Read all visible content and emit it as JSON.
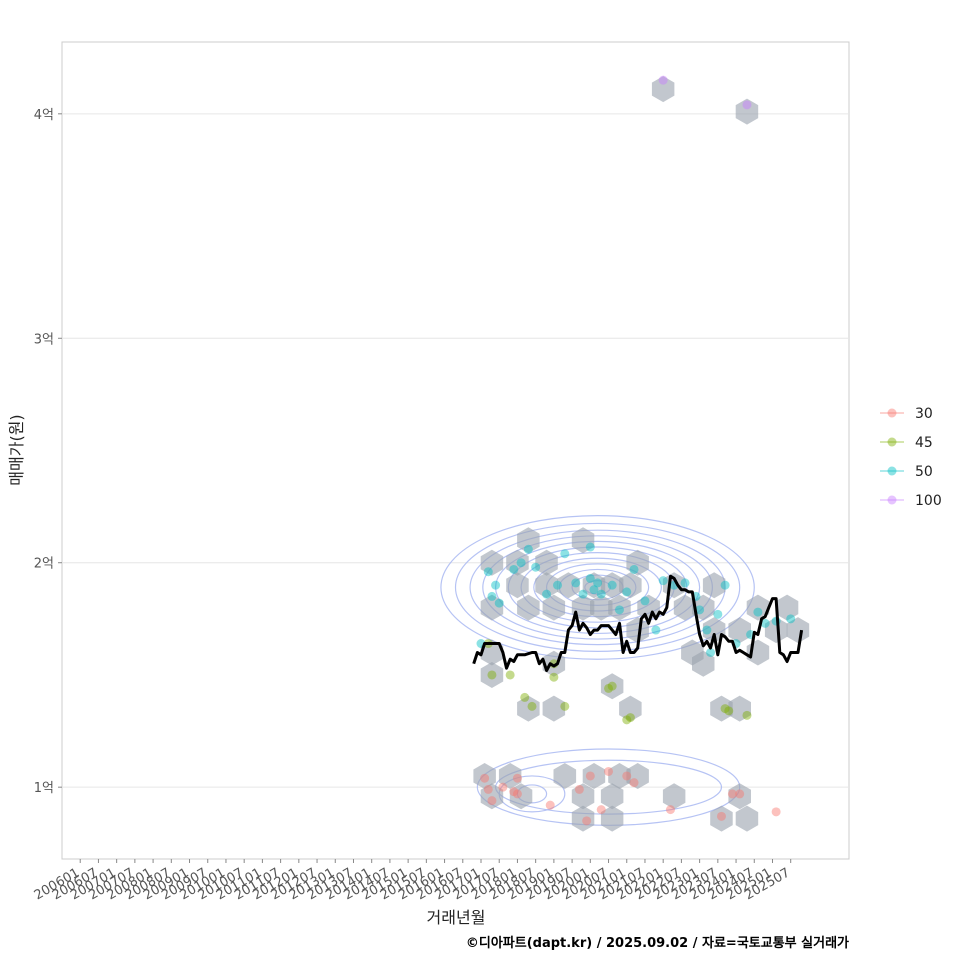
{
  "chart_data": {
    "type": "scatter",
    "title": "",
    "xlabel": "거래년월",
    "ylabel": "매매가(원)",
    "caption": "©디아파트(dapt.kr) / 2025.09.02 / 자료=국토교통부 실거래가",
    "x_ticks": [
      "200601",
      "200607",
      "200701",
      "200707",
      "200801",
      "200807",
      "200901",
      "200907",
      "201001",
      "201007",
      "201101",
      "201107",
      "201201",
      "201207",
      "201301",
      "201307",
      "201401",
      "201407",
      "201501",
      "201507",
      "201601",
      "201607",
      "201701",
      "201707",
      "201801",
      "201807",
      "201901",
      "201907",
      "202001",
      "202007",
      "202101",
      "202107",
      "202201",
      "202207",
      "202301",
      "202307",
      "202401",
      "202407",
      "202501",
      "202507"
    ],
    "y_ticks": [
      {
        "value": 1,
        "label": "1억"
      },
      {
        "value": 2,
        "label": "2억"
      },
      {
        "value": 3,
        "label": "3억"
      },
      {
        "value": 4,
        "label": "4억"
      }
    ],
    "xlim": [
      2005.5,
      2027.1
    ],
    "ylim": [
      0.68,
      4.32
    ],
    "legend": {
      "position": "right",
      "entries": [
        {
          "label": "30",
          "color": "#f8766d"
        },
        {
          "label": "45",
          "color": "#7cae00"
        },
        {
          "label": "50",
          "color": "#00bfc4"
        },
        {
          "label": "100",
          "color": "#c77cff"
        }
      ]
    },
    "series": [
      {
        "name": "30",
        "color": "#f8766d",
        "points": [
          [
            2017.1,
            1.04
          ],
          [
            2017.2,
            0.99
          ],
          [
            2017.3,
            0.94
          ],
          [
            2017.6,
            1.0
          ],
          [
            2017.9,
            0.98
          ],
          [
            2018.0,
            1.04
          ],
          [
            2018.0,
            0.97
          ],
          [
            2018.9,
            0.92
          ],
          [
            2019.7,
            0.99
          ],
          [
            2019.9,
            0.85
          ],
          [
            2020.0,
            1.05
          ],
          [
            2020.3,
            0.9
          ],
          [
            2020.5,
            1.07
          ],
          [
            2021.0,
            1.05
          ],
          [
            2021.2,
            1.02
          ],
          [
            2022.2,
            0.9
          ],
          [
            2023.6,
            0.87
          ],
          [
            2023.9,
            0.97
          ],
          [
            2024.1,
            0.97
          ],
          [
            2025.1,
            0.89
          ]
        ]
      },
      {
        "name": "45",
        "color": "#7cae00",
        "points": [
          [
            2017.2,
            1.64
          ],
          [
            2017.3,
            1.5
          ],
          [
            2017.8,
            1.5
          ],
          [
            2018.2,
            1.4
          ],
          [
            2018.4,
            1.36
          ],
          [
            2019.0,
            1.49
          ],
          [
            2019.0,
            1.55
          ],
          [
            2019.3,
            1.36
          ],
          [
            2020.5,
            1.44
          ],
          [
            2020.6,
            1.45
          ],
          [
            2021.0,
            1.3
          ],
          [
            2021.1,
            1.31
          ],
          [
            2023.7,
            1.35
          ],
          [
            2023.8,
            1.34
          ],
          [
            2024.3,
            1.32
          ]
        ]
      },
      {
        "name": "50",
        "color": "#00bfc4",
        "points": [
          [
            2017.2,
            1.96
          ],
          [
            2017.3,
            1.85
          ],
          [
            2017.4,
            1.9
          ],
          [
            2017.5,
            1.82
          ],
          [
            2017.9,
            1.97
          ],
          [
            2018.1,
            2.0
          ],
          [
            2018.3,
            2.06
          ],
          [
            2018.5,
            1.98
          ],
          [
            2018.8,
            1.86
          ],
          [
            2019.1,
            1.9
          ],
          [
            2019.3,
            2.04
          ],
          [
            2019.6,
            1.91
          ],
          [
            2019.8,
            1.86
          ],
          [
            2020.0,
            1.93
          ],
          [
            2020.1,
            1.88
          ],
          [
            2020.2,
            1.91
          ],
          [
            2020.3,
            1.86
          ],
          [
            2020.6,
            1.9
          ],
          [
            2020.8,
            1.79
          ],
          [
            2021.0,
            1.87
          ],
          [
            2021.2,
            1.97
          ],
          [
            2021.5,
            1.83
          ],
          [
            2021.8,
            1.7
          ],
          [
            2022.0,
            1.92
          ],
          [
            2022.3,
            1.9
          ],
          [
            2022.6,
            1.91
          ],
          [
            2022.9,
            1.85
          ],
          [
            2023.0,
            1.79
          ],
          [
            2023.2,
            1.7
          ],
          [
            2023.3,
            1.6
          ],
          [
            2023.5,
            1.77
          ],
          [
            2023.7,
            1.9
          ],
          [
            2024.0,
            1.64
          ],
          [
            2024.4,
            1.68
          ],
          [
            2024.6,
            1.78
          ],
          [
            2024.8,
            1.73
          ],
          [
            2025.1,
            1.74
          ],
          [
            2025.5,
            1.75
          ],
          [
            2017.0,
            1.64
          ],
          [
            2020.0,
            2.07
          ]
        ]
      },
      {
        "name": "100",
        "color": "#c77cff",
        "points": [
          [
            2022.0,
            4.15
          ],
          [
            2024.3,
            4.04
          ]
        ]
      }
    ],
    "hexbins": [
      [
        2022.0,
        4.11
      ],
      [
        2024.3,
        4.01
      ],
      [
        2017.3,
        2.0
      ],
      [
        2018.3,
        2.1
      ],
      [
        2019.8,
        2.1
      ],
      [
        2018.0,
        2.0
      ],
      [
        2018.8,
        2.0
      ],
      [
        2021.3,
        2.0
      ],
      [
        2017.3,
        1.8
      ],
      [
        2018.0,
        1.9
      ],
      [
        2018.8,
        1.9
      ],
      [
        2019.4,
        1.9
      ],
      [
        2020.1,
        1.9
      ],
      [
        2020.6,
        1.9
      ],
      [
        2021.1,
        1.9
      ],
      [
        2022.3,
        1.9
      ],
      [
        2023.4,
        1.9
      ],
      [
        2018.3,
        1.8
      ],
      [
        2019.0,
        1.8
      ],
      [
        2019.8,
        1.8
      ],
      [
        2020.3,
        1.8
      ],
      [
        2020.8,
        1.8
      ],
      [
        2021.6,
        1.8
      ],
      [
        2022.6,
        1.8
      ],
      [
        2023.1,
        1.8
      ],
      [
        2024.6,
        1.8
      ],
      [
        2025.4,
        1.8
      ],
      [
        2021.3,
        1.7
      ],
      [
        2023.4,
        1.7
      ],
      [
        2024.1,
        1.7
      ],
      [
        2025.1,
        1.7
      ],
      [
        2025.7,
        1.7
      ],
      [
        2017.3,
        1.6
      ],
      [
        2022.8,
        1.6
      ],
      [
        2024.6,
        1.6
      ],
      [
        2017.3,
        1.5
      ],
      [
        2019.0,
        1.55
      ],
      [
        2023.1,
        1.55
      ],
      [
        2020.6,
        1.45
      ],
      [
        2018.3,
        1.35
      ],
      [
        2019.0,
        1.35
      ],
      [
        2021.1,
        1.35
      ],
      [
        2023.6,
        1.35
      ],
      [
        2024.1,
        1.35
      ],
      [
        2017.1,
        1.05
      ],
      [
        2017.8,
        1.05
      ],
      [
        2019.3,
        1.05
      ],
      [
        2020.1,
        1.05
      ],
      [
        2020.8,
        1.05
      ],
      [
        2021.3,
        1.05
      ],
      [
        2017.3,
        0.96
      ],
      [
        2018.1,
        0.96
      ],
      [
        2019.8,
        0.96
      ],
      [
        2020.6,
        0.96
      ],
      [
        2022.3,
        0.96
      ],
      [
        2024.1,
        0.96
      ],
      [
        2019.8,
        0.86
      ],
      [
        2020.6,
        0.86
      ],
      [
        2023.6,
        0.86
      ],
      [
        2024.3,
        0.86
      ]
    ],
    "trend_line": [
      [
        2016.8,
        1.55
      ],
      [
        2016.9,
        1.6
      ],
      [
        2017.0,
        1.59
      ],
      [
        2017.1,
        1.64
      ],
      [
        2017.3,
        1.64
      ],
      [
        2017.5,
        1.64
      ],
      [
        2017.6,
        1.6
      ],
      [
        2017.7,
        1.53
      ],
      [
        2017.8,
        1.57
      ],
      [
        2017.9,
        1.56
      ],
      [
        2018.0,
        1.59
      ],
      [
        2018.2,
        1.59
      ],
      [
        2018.4,
        1.6
      ],
      [
        2018.5,
        1.6
      ],
      [
        2018.6,
        1.55
      ],
      [
        2018.7,
        1.57
      ],
      [
        2018.8,
        1.52
      ],
      [
        2018.9,
        1.55
      ],
      [
        2019.0,
        1.54
      ],
      [
        2019.1,
        1.55
      ],
      [
        2019.2,
        1.6
      ],
      [
        2019.3,
        1.6
      ],
      [
        2019.4,
        1.7
      ],
      [
        2019.5,
        1.72
      ],
      [
        2019.6,
        1.78
      ],
      [
        2019.7,
        1.7
      ],
      [
        2019.8,
        1.73
      ],
      [
        2019.9,
        1.71
      ],
      [
        2020.0,
        1.68
      ],
      [
        2020.1,
        1.7
      ],
      [
        2020.2,
        1.7
      ],
      [
        2020.3,
        1.72
      ],
      [
        2020.4,
        1.72
      ],
      [
        2020.5,
        1.72
      ],
      [
        2020.6,
        1.7
      ],
      [
        2020.7,
        1.68
      ],
      [
        2020.8,
        1.73
      ],
      [
        2020.9,
        1.6
      ],
      [
        2021.0,
        1.65
      ],
      [
        2021.1,
        1.6
      ],
      [
        2021.2,
        1.6
      ],
      [
        2021.3,
        1.62
      ],
      [
        2021.4,
        1.75
      ],
      [
        2021.5,
        1.77
      ],
      [
        2021.6,
        1.73
      ],
      [
        2021.7,
        1.78
      ],
      [
        2021.8,
        1.75
      ],
      [
        2021.9,
        1.78
      ],
      [
        2022.0,
        1.77
      ],
      [
        2022.1,
        1.8
      ],
      [
        2022.2,
        1.94
      ],
      [
        2022.3,
        1.93
      ],
      [
        2022.4,
        1.9
      ],
      [
        2022.5,
        1.88
      ],
      [
        2022.6,
        1.88
      ],
      [
        2022.7,
        1.87
      ],
      [
        2022.8,
        1.87
      ],
      [
        2022.9,
        1.77
      ],
      [
        2023.0,
        1.68
      ],
      [
        2023.1,
        1.63
      ],
      [
        2023.2,
        1.65
      ],
      [
        2023.3,
        1.62
      ],
      [
        2023.4,
        1.68
      ],
      [
        2023.5,
        1.59
      ],
      [
        2023.6,
        1.68
      ],
      [
        2023.7,
        1.67
      ],
      [
        2023.8,
        1.65
      ],
      [
        2023.9,
        1.65
      ],
      [
        2024.0,
        1.6
      ],
      [
        2024.1,
        1.61
      ],
      [
        2024.2,
        1.6
      ],
      [
        2024.3,
        1.59
      ],
      [
        2024.4,
        1.58
      ],
      [
        2024.5,
        1.69
      ],
      [
        2024.6,
        1.68
      ],
      [
        2024.7,
        1.75
      ],
      [
        2024.8,
        1.76
      ],
      [
        2024.9,
        1.8
      ],
      [
        2025.0,
        1.84
      ],
      [
        2025.1,
        1.84
      ],
      [
        2025.2,
        1.6
      ],
      [
        2025.3,
        1.59
      ],
      [
        2025.4,
        1.56
      ],
      [
        2025.5,
        1.6
      ],
      [
        2025.6,
        1.6
      ],
      [
        2025.7,
        1.6
      ],
      [
        2025.8,
        1.7
      ]
    ],
    "contours": [
      {
        "cx": 2020.2,
        "cy": 1.89,
        "rx": [
          0.35,
          0.7,
          1.05,
          1.4,
          1.75,
          2.1,
          2.45,
          2.8,
          3.15,
          3.5,
          3.9,
          4.3
        ],
        "ry": [
          0.03,
          0.055,
          0.08,
          0.105,
          0.13,
          0.155,
          0.18,
          0.205,
          0.23,
          0.255,
          0.285,
          0.32
        ]
      },
      {
        "cx": 2018.4,
        "cy": 0.97,
        "rx": [
          0.4,
          0.9
        ],
        "ry": [
          0.04,
          0.08
        ]
      },
      {
        "cx": 2020.5,
        "cy": 1.0,
        "rx": [
          3.1,
          3.6
        ],
        "ry": [
          0.12,
          0.17
        ]
      }
    ]
  }
}
